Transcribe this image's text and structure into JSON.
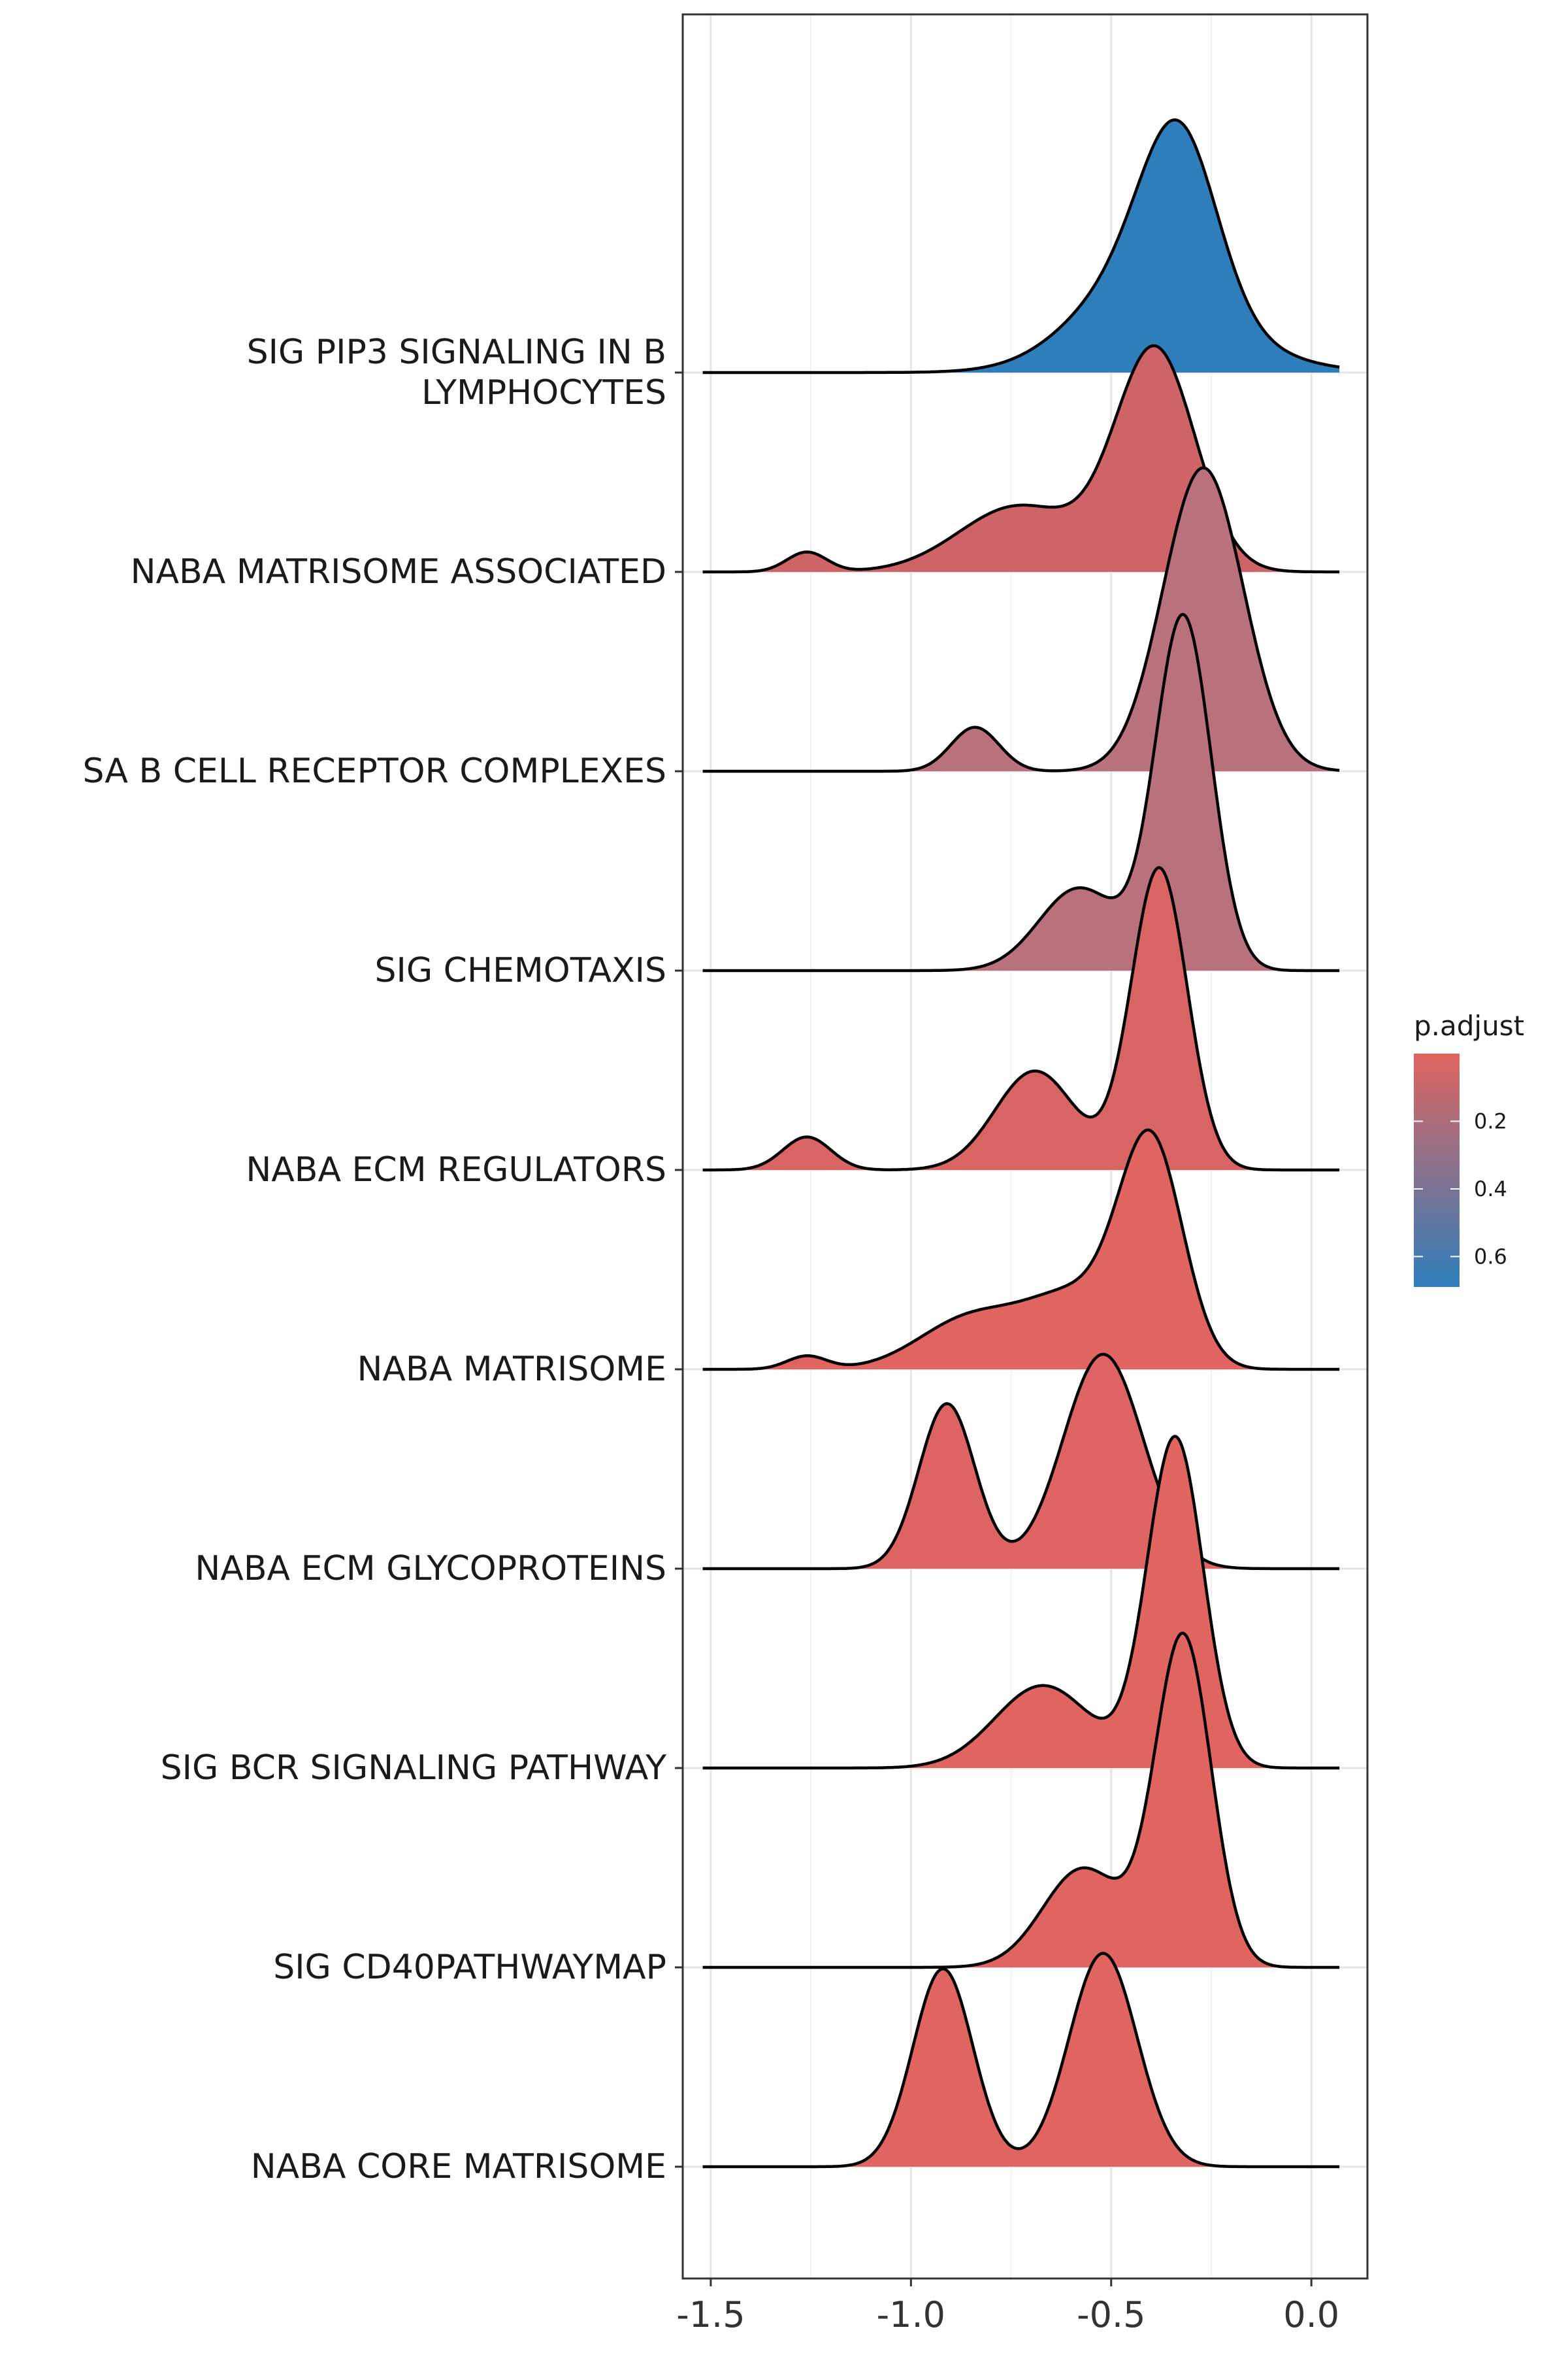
{
  "chart_data": {
    "type": "ridgeline",
    "xlabel": "",
    "ylabel": "",
    "xlim": [
      -1.57,
      0.14
    ],
    "x_ticks": [
      {
        "value": -1.5,
        "label": "-1.5"
      },
      {
        "value": -1.0,
        "label": "-1.0"
      },
      {
        "value": -0.5,
        "label": "-0.5"
      },
      {
        "value": 0.0,
        "label": "0.0"
      }
    ],
    "x_range": [
      -1.52,
      0.07
    ],
    "grid": true,
    "legend": {
      "title": "p.adjust",
      "position": "right",
      "min": 0.0,
      "max": 0.69,
      "low_color": "#e0645f",
      "high_color": "#2f7ebc",
      "ticks": [
        {
          "value": 0.2,
          "label": "0.2"
        },
        {
          "value": 0.4,
          "label": "0.4"
        },
        {
          "value": 0.6,
          "label": "0.6"
        }
      ]
    },
    "series": [
      {
        "name": "SIG PIP3 SIGNALING IN B\nLYMPHOCYTES",
        "color": "#2f7ebc",
        "p_adjust": 0.69,
        "components": [
          {
            "mean": -0.33,
            "sd": 0.095,
            "weight": 0.5
          },
          {
            "mean": -0.47,
            "sd": 0.14,
            "weight": 0.2
          },
          {
            "mean": -0.35,
            "sd": 0.2,
            "weight": 0.3
          }
        ]
      },
      {
        "name": "NABA MATRISOME ASSOCIATED",
        "color": "#cf6468",
        "p_adjust": 0.1,
        "components": [
          {
            "mean": -1.26,
            "sd": 0.05,
            "weight": 0.03
          },
          {
            "mean": -0.73,
            "sd": 0.15,
            "weight": 0.3
          },
          {
            "mean": -0.39,
            "sd": 0.1,
            "weight": 0.67
          }
        ]
      },
      {
        "name": "SA B CELL RECEPTOR COMPLEXES",
        "color": "#b9717e",
        "p_adjust": 0.3,
        "components": [
          {
            "mean": -0.84,
            "sd": 0.06,
            "weight": 0.08
          },
          {
            "mean": -0.27,
            "sd": 0.1,
            "weight": 0.92
          }
        ]
      },
      {
        "name": "SIG CHEMOTAXIS",
        "color": "#b9717e",
        "p_adjust": 0.3,
        "components": [
          {
            "mean": -0.58,
            "sd": 0.1,
            "weight": 0.25
          },
          {
            "mean": -0.32,
            "sd": 0.07,
            "weight": 0.75
          }
        ]
      },
      {
        "name": "NABA ECM REGULATORS",
        "color": "#d86463",
        "p_adjust": 0.05,
        "components": [
          {
            "mean": -1.26,
            "sd": 0.06,
            "weight": 0.06
          },
          {
            "mean": -0.69,
            "sd": 0.1,
            "weight": 0.3
          },
          {
            "mean": -0.38,
            "sd": 0.07,
            "weight": 0.64
          }
        ]
      },
      {
        "name": "NABA MATRISOME",
        "color": "#e0645f",
        "p_adjust": 0.01,
        "components": [
          {
            "mean": -1.26,
            "sd": 0.05,
            "weight": 0.02
          },
          {
            "mean": -0.85,
            "sd": 0.13,
            "weight": 0.2
          },
          {
            "mean": -0.59,
            "sd": 0.12,
            "weight": 0.25
          },
          {
            "mean": -0.4,
            "sd": 0.08,
            "weight": 0.53
          }
        ]
      },
      {
        "name": "NABA ECM GLYCOPROTEINS",
        "color": "#dd6462",
        "p_adjust": 0.02,
        "components": [
          {
            "mean": -0.91,
            "sd": 0.07,
            "weight": 0.35
          },
          {
            "mean": -0.52,
            "sd": 0.1,
            "weight": 0.65
          }
        ]
      },
      {
        "name": "SIG BCR SIGNALING PATHWAY",
        "color": "#e0645f",
        "p_adjust": 0.01,
        "components": [
          {
            "mean": -0.67,
            "sd": 0.12,
            "weight": 0.3
          },
          {
            "mean": -0.34,
            "sd": 0.07,
            "weight": 0.7
          }
        ]
      },
      {
        "name": "SIG CD40PATHWAYMAP",
        "color": "#e0645f",
        "p_adjust": 0.01,
        "components": [
          {
            "mean": -0.57,
            "sd": 0.1,
            "weight": 0.3
          },
          {
            "mean": -0.32,
            "sd": 0.07,
            "weight": 0.7
          }
        ]
      },
      {
        "name": "NABA CORE MATRISOME",
        "color": "#e0645f",
        "p_adjust": 0.01,
        "components": [
          {
            "mean": -0.92,
            "sd": 0.075,
            "weight": 0.45
          },
          {
            "mean": -0.52,
            "sd": 0.085,
            "weight": 0.55
          }
        ]
      }
    ]
  }
}
